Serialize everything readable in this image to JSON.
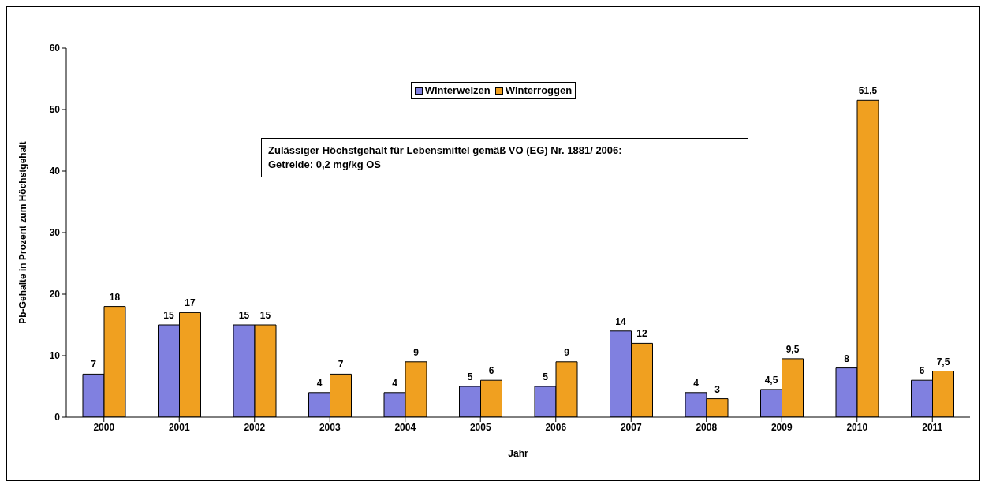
{
  "chart_data": {
    "type": "bar",
    "xlabel": "Jahr",
    "ylabel": "Pb-Gehalte in Prozent zum Höchstgehalt",
    "categories": [
      "2000",
      "2001",
      "2002",
      "2003",
      "2004",
      "2005",
      "2006",
      "2007",
      "2008",
      "2009",
      "2010",
      "2011"
    ],
    "series": [
      {
        "name": "Winterweizen",
        "color": "#8080e0",
        "values": [
          7,
          15,
          15,
          4,
          4,
          5,
          5,
          14,
          4,
          4.5,
          8,
          6
        ],
        "value_labels": [
          "7",
          "15",
          "15",
          "4",
          "4",
          "5",
          "5",
          "14",
          "4",
          "4,5",
          "8",
          "6"
        ]
      },
      {
        "name": "Winterroggen",
        "color": "#f0a020",
        "values": [
          18,
          17,
          15,
          7,
          9,
          6,
          9,
          12,
          3,
          9.5,
          51.5,
          7.5
        ],
        "value_labels": [
          "18",
          "17",
          "15",
          "7",
          "9",
          "6",
          "9",
          "12",
          "3",
          "9,5",
          "51,5",
          "7,5"
        ]
      }
    ],
    "ylim": [
      0,
      60
    ],
    "yticks": [
      0,
      10,
      20,
      30,
      40,
      50,
      60
    ],
    "grid": false,
    "legend": "top",
    "annotations": [
      "Zulässiger Höchstgehalt für Lebensmittel gemäß VO (EG) Nr. 1881/ 2006:\nGetreide: 0,2 mg/kg OS"
    ]
  }
}
